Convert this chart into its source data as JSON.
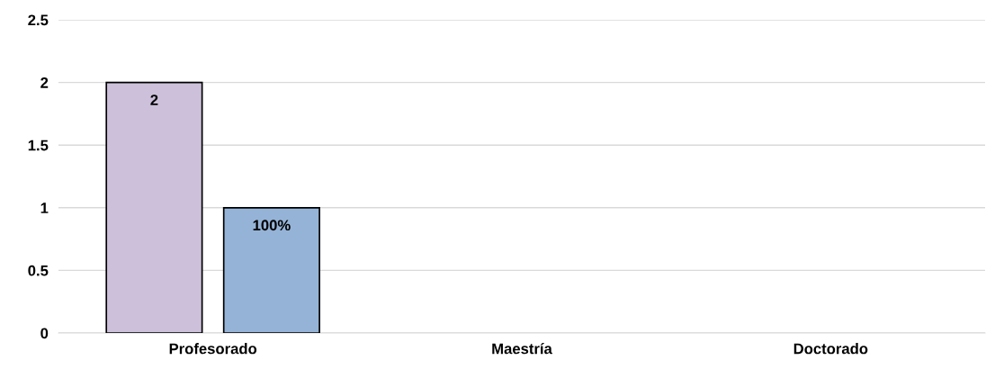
{
  "chart_data": {
    "type": "bar",
    "categories": [
      "Profesorado",
      "Maestría",
      "Doctorado"
    ],
    "series": [
      {
        "color": "#ccc0da",
        "values": [
          2,
          null,
          null
        ],
        "value_labels": [
          "2",
          null,
          null
        ]
      },
      {
        "color": "#95b3d7",
        "values": [
          1,
          null,
          null
        ],
        "value_labels": [
          "100%",
          null,
          null
        ]
      }
    ],
    "ylim": [
      0,
      2.5
    ],
    "yticks": [
      0,
      0.5,
      1,
      1.5,
      2,
      2.5
    ],
    "grid": "y",
    "legend": false
  }
}
